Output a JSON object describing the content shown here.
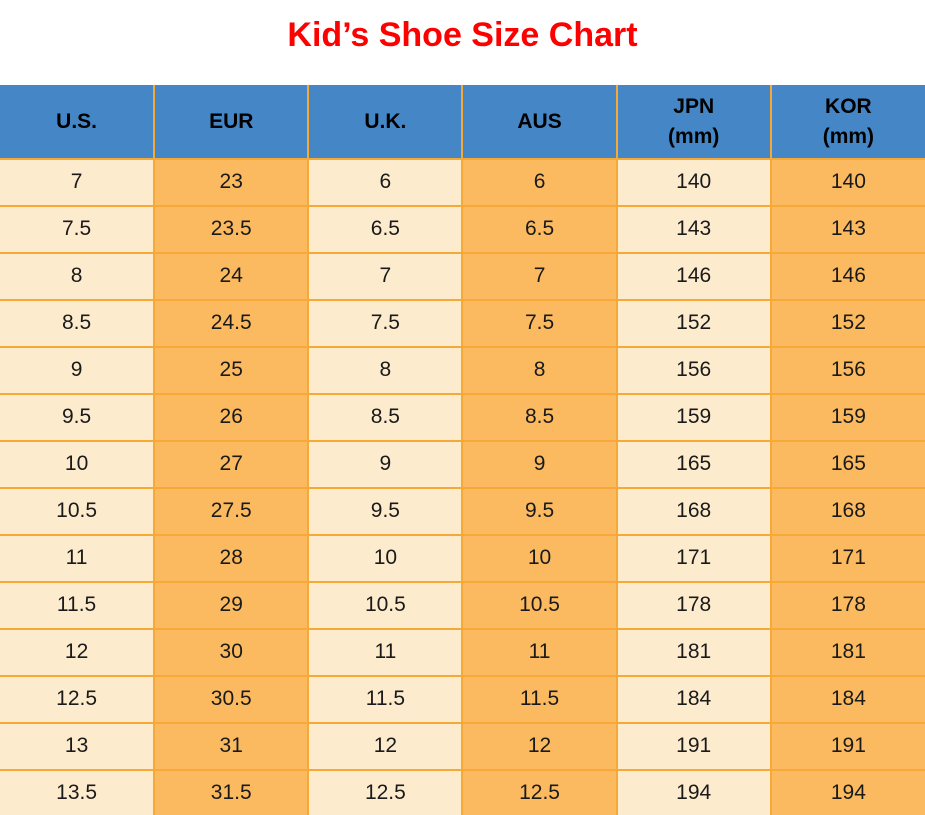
{
  "title": "Kid’s Shoe Size Chart",
  "colors": {
    "title_red": "#FF0000",
    "header_bg": "#4486C6",
    "header_text": "#000000",
    "grid_orange": "#F7A937",
    "col_light": "#FDEBCD",
    "col_orange": "#FBBA60",
    "cell_text": "#1A1A1A"
  },
  "chart_data": {
    "type": "table",
    "title": "Kid’s Shoe Size Chart",
    "columns": [
      {
        "id": "us",
        "label": "U.S.",
        "unit": ""
      },
      {
        "id": "eur",
        "label": "EUR",
        "unit": ""
      },
      {
        "id": "uk",
        "label": "U.K.",
        "unit": ""
      },
      {
        "id": "aus",
        "label": "AUS",
        "unit": ""
      },
      {
        "id": "jpn",
        "label": "JPN",
        "unit": "(mm)"
      },
      {
        "id": "kor",
        "label": "KOR",
        "unit": "(mm)"
      }
    ],
    "rows": [
      [
        "7",
        "23",
        "6",
        "6",
        "140",
        "140"
      ],
      [
        "7.5",
        "23.5",
        "6.5",
        "6.5",
        "143",
        "143"
      ],
      [
        "8",
        "24",
        "7",
        "7",
        "146",
        "146"
      ],
      [
        "8.5",
        "24.5",
        "7.5",
        "7.5",
        "152",
        "152"
      ],
      [
        "9",
        "25",
        "8",
        "8",
        "156",
        "156"
      ],
      [
        "9.5",
        "26",
        "8.5",
        "8.5",
        "159",
        "159"
      ],
      [
        "10",
        "27",
        "9",
        "9",
        "165",
        "165"
      ],
      [
        "10.5",
        "27.5",
        "9.5",
        "9.5",
        "168",
        "168"
      ],
      [
        "11",
        "28",
        "10",
        "10",
        "171",
        "171"
      ],
      [
        "11.5",
        "29",
        "10.5",
        "10.5",
        "178",
        "178"
      ],
      [
        "12",
        "30",
        "11",
        "11",
        "181",
        "181"
      ],
      [
        "12.5",
        "30.5",
        "11.5",
        "11.5",
        "184",
        "184"
      ],
      [
        "13",
        "31",
        "12",
        "12",
        "191",
        "191"
      ],
      [
        "13.5",
        "31.5",
        "12.5",
        "12.5",
        "194",
        "194"
      ]
    ]
  }
}
